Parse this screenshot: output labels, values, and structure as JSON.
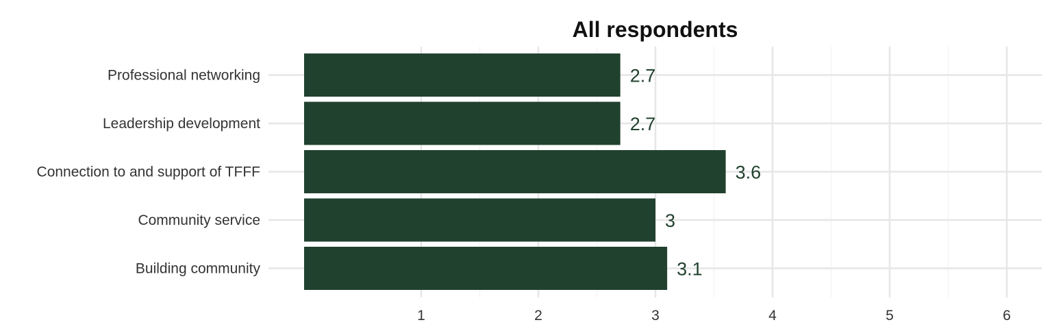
{
  "chart_data": {
    "type": "bar",
    "orientation": "horizontal",
    "title": "All respondents",
    "xlabel": "",
    "ylabel": "",
    "categories": [
      "Professional networking",
      "Leadership development",
      "Connection to and support of TFFF",
      "Community service",
      "Building community"
    ],
    "values": [
      2.7,
      2.7,
      3.6,
      3,
      3.1
    ],
    "value_labels": [
      "2.7",
      "2.7",
      "3.6",
      "3",
      "3.1"
    ],
    "x_ticks": [
      1,
      2,
      3,
      4,
      5,
      6
    ],
    "x_tick_labels": [
      "1",
      "2",
      "3",
      "4",
      "5",
      "6"
    ],
    "xlim": [
      0,
      6.3
    ],
    "grid": true,
    "legend": "none",
    "bar_color": "#21412f",
    "label_color": "#21412f"
  }
}
